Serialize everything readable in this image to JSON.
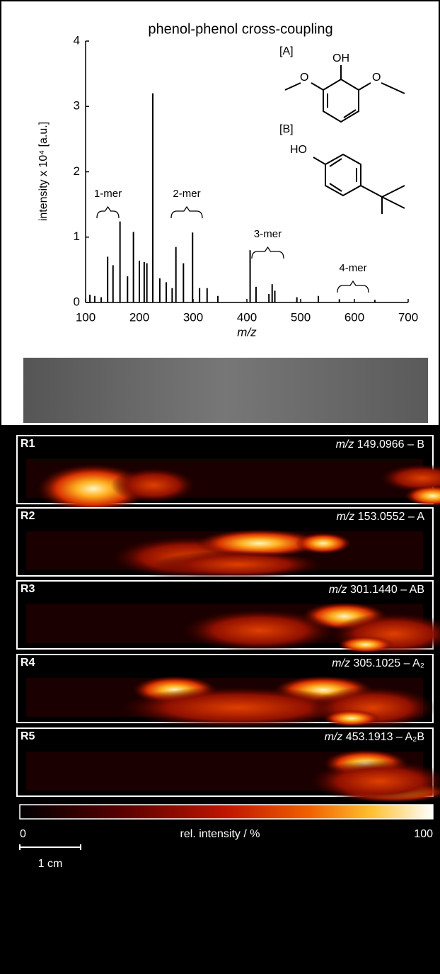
{
  "chart_data": {
    "type": "stem",
    "title": "phenol-phenol cross-coupling",
    "x_label": "m/z",
    "y_label": "intensity x 10⁴ [a.u.]",
    "color": "#000000",
    "x": [
      108,
      117,
      129,
      141,
      151,
      164,
      178,
      189,
      200,
      209,
      214,
      225,
      238,
      250,
      261,
      268,
      282,
      299,
      312,
      326,
      346,
      406,
      417,
      441,
      447,
      452,
      493,
      533,
      572,
      638
    ],
    "values": [
      0.12,
      0.1,
      0.08,
      0.7,
      0.57,
      1.24,
      0.4,
      1.08,
      0.64,
      0.62,
      0.6,
      3.2,
      0.37,
      0.31,
      0.22,
      0.85,
      0.6,
      1.07,
      0.22,
      0.22,
      0.1,
      0.8,
      0.24,
      0.13,
      0.28,
      0.18,
      0.08,
      0.1,
      0.05,
      0.04
    ],
    "xlim": [
      100,
      700
    ],
    "xticks": [
      100,
      200,
      300,
      400,
      500,
      600,
      700
    ],
    "ylim": [
      0,
      4
    ],
    "yticks": [
      0,
      1,
      2,
      3,
      4
    ],
    "annotations": [
      "1-mer",
      "2-mer",
      "3-mer",
      "4-mer"
    ]
  },
  "structures": {
    "A": {
      "label": "[A]",
      "groups": [
        "OH",
        "O",
        "O"
      ]
    },
    "B": {
      "label": "[B]",
      "groups": [
        "HO"
      ]
    }
  },
  "panels": [
    {
      "label": "R1",
      "mz_prefix": "m/z",
      "mz": "149.0966",
      "species": "– B"
    },
    {
      "label": "R2",
      "mz_prefix": "m/z",
      "mz": "153.0552",
      "species": "– A"
    },
    {
      "label": "R3",
      "mz_prefix": "m/z",
      "mz": "301.1440",
      "species": "– AB"
    },
    {
      "label": "R4",
      "mz_prefix": "m/z",
      "mz": "305.1025",
      "species": "– A₂"
    },
    {
      "label": "R5",
      "mz_prefix": "m/z",
      "mz": "453.1913",
      "species": "– A₂B"
    }
  ],
  "colorbar": {
    "min_label": "0",
    "title": "rel. intensity / %",
    "max_label": "100"
  },
  "scale_bar": "1 cm"
}
